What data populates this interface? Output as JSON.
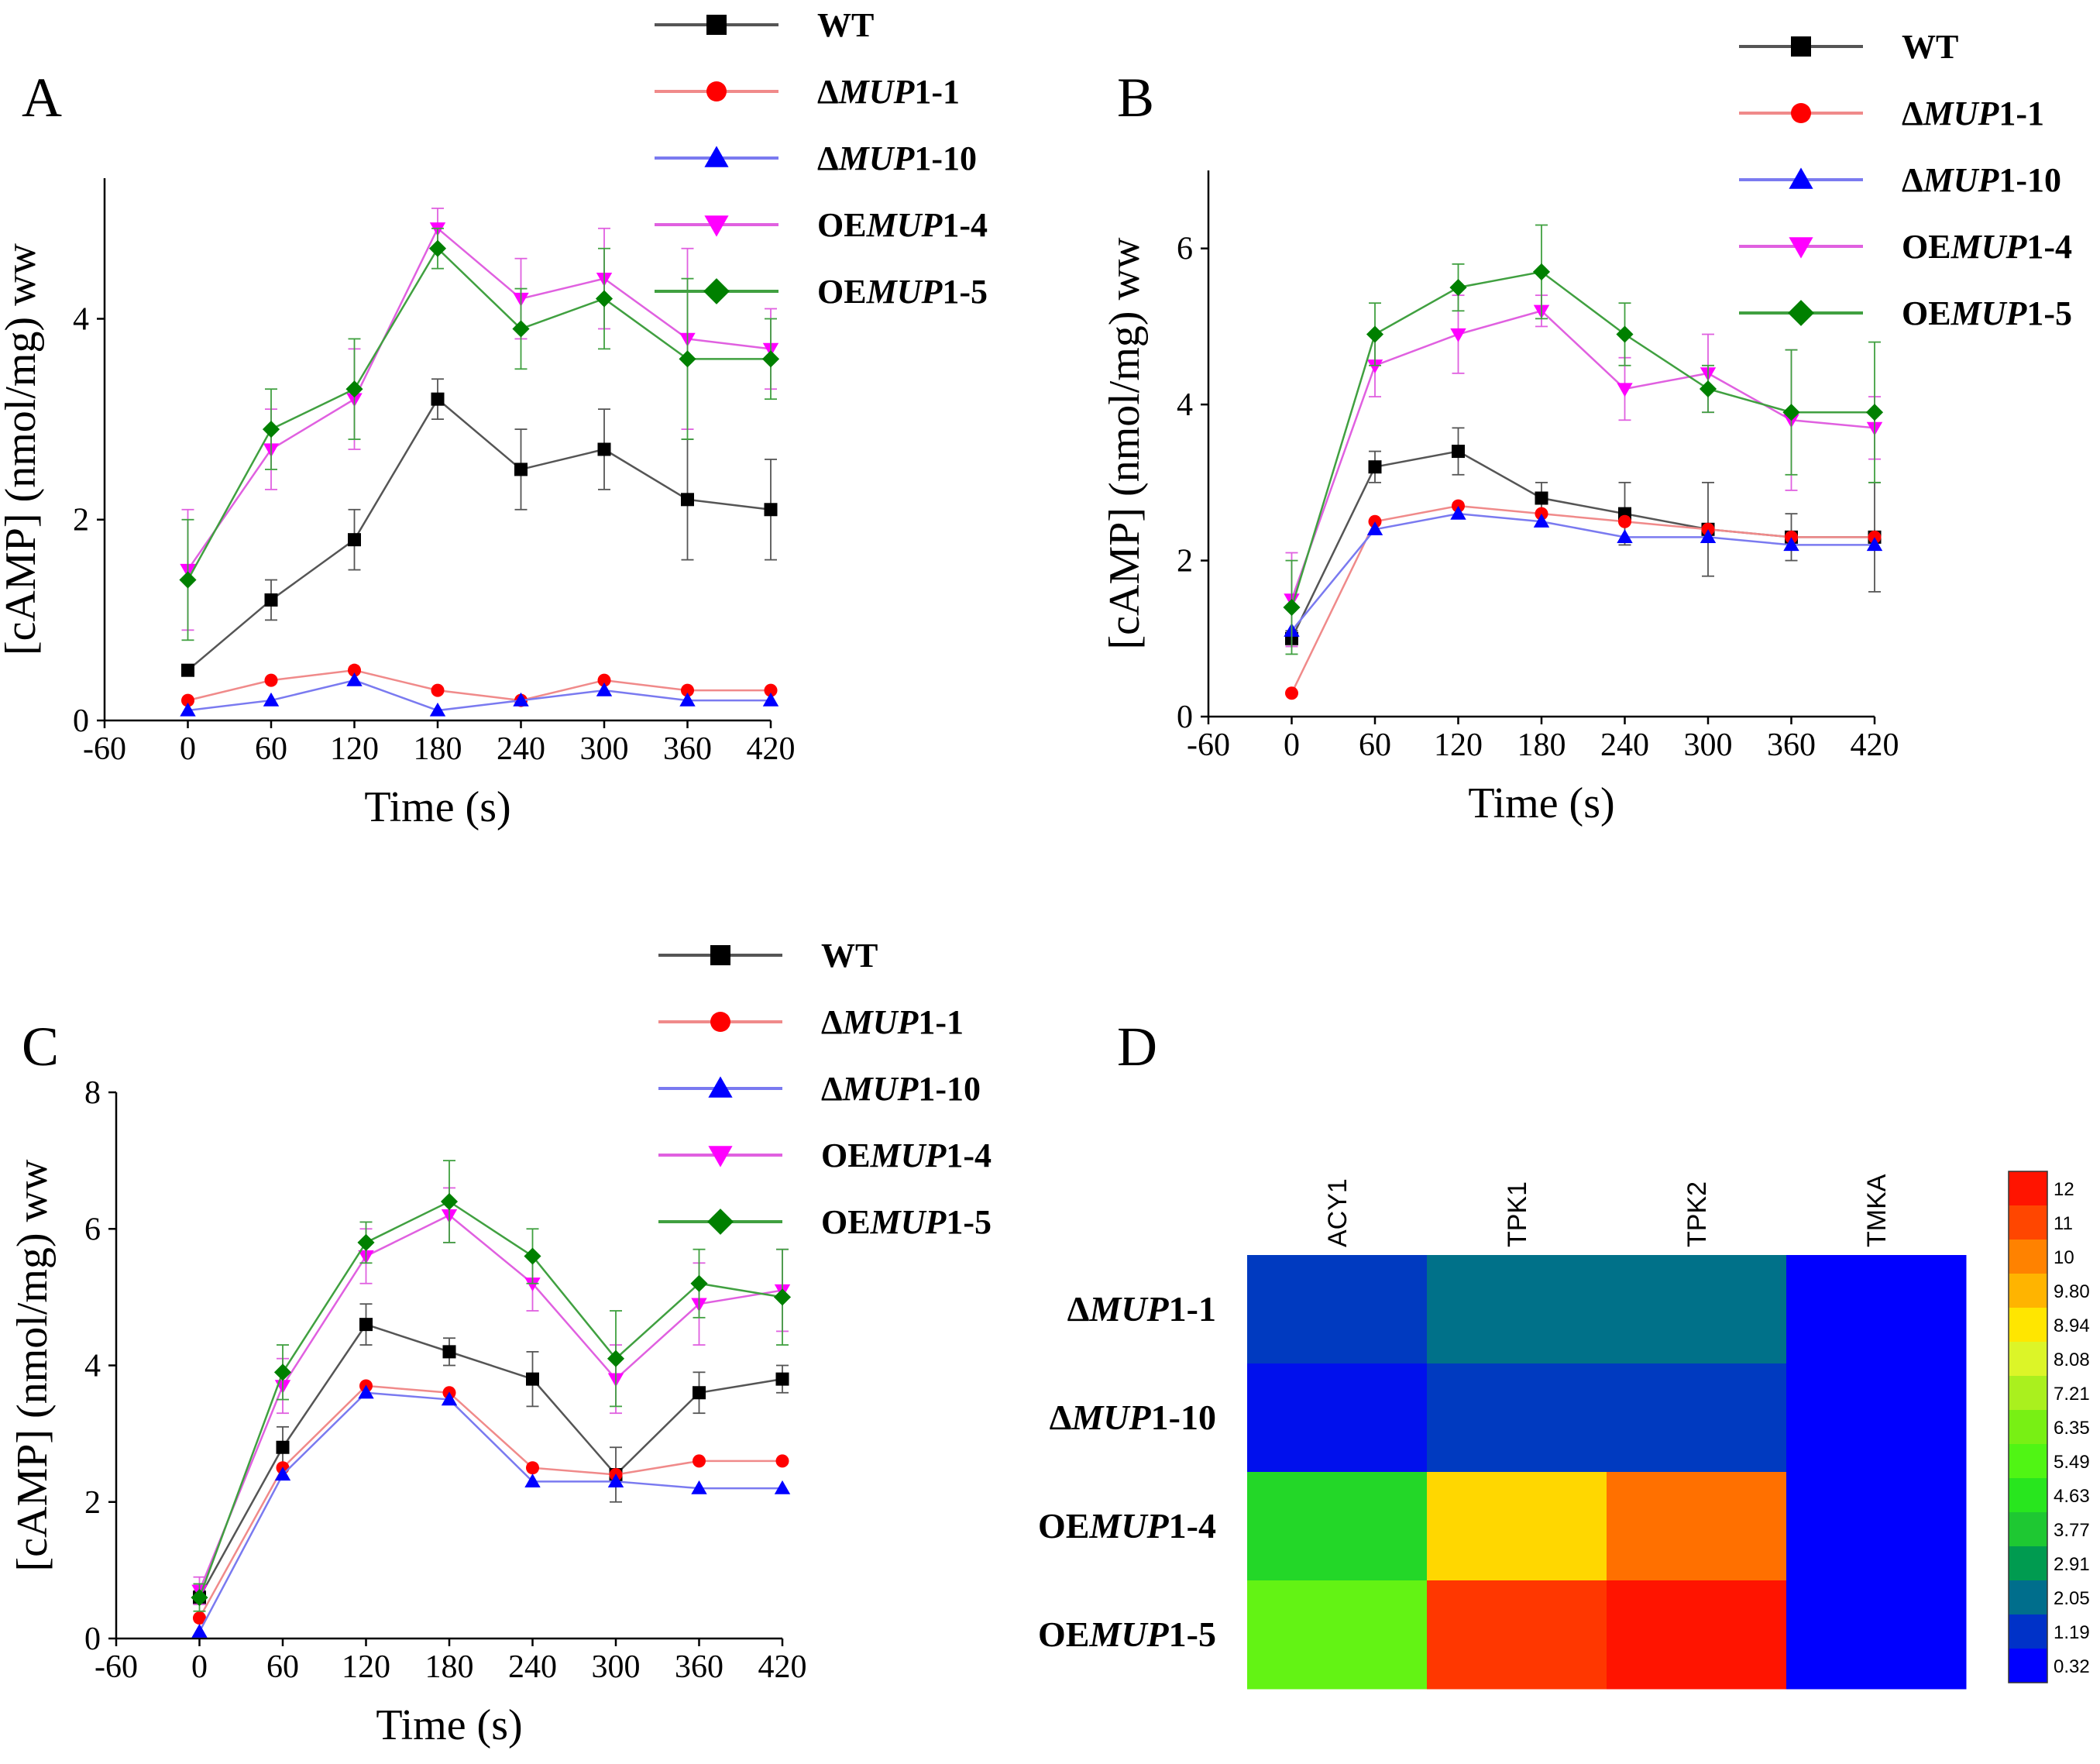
{
  "chart_data": [
    {
      "panel": "A",
      "type": "line",
      "xlabel": "Time (s)",
      "ylabel": "[cAMP] (nmol/mg) ww",
      "xlim": [
        -60,
        420
      ],
      "ylim": [
        0,
        5.4
      ],
      "xticks": [
        -60,
        0,
        60,
        120,
        180,
        240,
        300,
        360,
        420
      ],
      "yticks": [
        0,
        2,
        4
      ],
      "x": [
        0,
        60,
        120,
        180,
        240,
        300,
        360,
        420
      ],
      "series": [
        {
          "name": "WT",
          "values": [
            0.5,
            1.2,
            1.8,
            3.2,
            2.5,
            2.7,
            2.2,
            2.1
          ],
          "errors": [
            0.05,
            0.2,
            0.3,
            0.2,
            0.4,
            0.4,
            0.6,
            0.5
          ]
        },
        {
          "name": "ΔMUP1-1",
          "values": [
            0.2,
            0.4,
            0.5,
            0.3,
            0.2,
            0.4,
            0.3,
            0.3
          ],
          "errors": [
            0,
            0,
            0,
            0,
            0,
            0,
            0,
            0
          ]
        },
        {
          "name": "ΔMUP1-10",
          "values": [
            0.1,
            0.2,
            0.4,
            0.1,
            0.2,
            0.3,
            0.2,
            0.2
          ],
          "errors": [
            0,
            0,
            0,
            0,
            0,
            0,
            0,
            0
          ]
        },
        {
          "name": "OEMUP1-4",
          "values": [
            1.5,
            2.7,
            3.2,
            4.9,
            4.2,
            4.4,
            3.8,
            3.7
          ],
          "errors": [
            0.6,
            0.4,
            0.5,
            0.2,
            0.4,
            0.5,
            0.9,
            0.4
          ]
        },
        {
          "name": "OEMUP1-5",
          "values": [
            1.4,
            2.9,
            3.3,
            4.7,
            3.9,
            4.2,
            3.6,
            3.6
          ],
          "errors": [
            0.6,
            0.4,
            0.5,
            0.2,
            0.4,
            0.5,
            0.8,
            0.4
          ]
        }
      ]
    },
    {
      "panel": "B",
      "type": "line",
      "xlabel": "Time (s)",
      "ylabel": "[cAMP] (nmol/mg) ww",
      "xlim": [
        -60,
        420
      ],
      "ylim": [
        0,
        7
      ],
      "xticks": [
        -60,
        0,
        60,
        120,
        180,
        240,
        300,
        360,
        420
      ],
      "yticks": [
        0,
        2,
        4,
        6
      ],
      "x": [
        0,
        60,
        120,
        180,
        240,
        300,
        360,
        420
      ],
      "series": [
        {
          "name": "WT",
          "values": [
            1.0,
            3.2,
            3.4,
            2.8,
            2.6,
            2.4,
            2.3,
            2.3
          ],
          "errors": [
            0.1,
            0.2,
            0.3,
            0.2,
            0.4,
            0.6,
            0.3,
            0.7
          ]
        },
        {
          "name": "ΔMUP1-1",
          "values": [
            0.3,
            2.5,
            2.7,
            2.6,
            2.5,
            2.4,
            2.3,
            2.3
          ],
          "errors": [
            0,
            0,
            0,
            0,
            0,
            0,
            0,
            0
          ]
        },
        {
          "name": "ΔMUP1-10",
          "values": [
            1.1,
            2.4,
            2.6,
            2.5,
            2.3,
            2.3,
            2.2,
            2.2
          ],
          "errors": [
            0,
            0,
            0,
            0,
            0,
            0,
            0,
            0
          ]
        },
        {
          "name": "OEMUP1-4",
          "values": [
            1.5,
            4.5,
            4.9,
            5.2,
            4.2,
            4.4,
            3.8,
            3.7
          ],
          "errors": [
            0.6,
            0.4,
            0.5,
            0.2,
            0.4,
            0.5,
            0.9,
            0.4
          ]
        },
        {
          "name": "OEMUP1-5",
          "values": [
            1.4,
            4.9,
            5.5,
            5.7,
            4.9,
            4.2,
            3.9,
            3.9
          ],
          "errors": [
            0.6,
            0.4,
            0.3,
            0.6,
            0.4,
            0.3,
            0.8,
            0.9
          ]
        }
      ]
    },
    {
      "panel": "C",
      "type": "line",
      "xlabel": "Time (s)",
      "ylabel": "[cAMP] (nmol/mg) ww",
      "xlim": [
        -60,
        420
      ],
      "ylim": [
        0,
        8
      ],
      "xticks": [
        -60,
        0,
        60,
        120,
        180,
        240,
        300,
        360,
        420
      ],
      "yticks": [
        0,
        2,
        4,
        6,
        8
      ],
      "x": [
        0,
        60,
        120,
        180,
        240,
        300,
        360,
        420
      ],
      "series": [
        {
          "name": "WT",
          "values": [
            0.6,
            2.8,
            4.6,
            4.2,
            3.8,
            2.4,
            3.6,
            3.8
          ],
          "errors": [
            0.1,
            0.3,
            0.3,
            0.2,
            0.4,
            0.4,
            0.3,
            0.2
          ]
        },
        {
          "name": "ΔMUP1-1",
          "values": [
            0.3,
            2.5,
            3.7,
            3.6,
            2.5,
            2.4,
            2.6,
            2.6
          ],
          "errors": [
            0,
            0,
            0,
            0,
            0,
            0,
            0,
            0
          ]
        },
        {
          "name": "ΔMUP1-10",
          "values": [
            0.1,
            2.4,
            3.6,
            3.5,
            2.3,
            2.3,
            2.2,
            2.2
          ],
          "errors": [
            0,
            0,
            0,
            0,
            0,
            0,
            0,
            0
          ]
        },
        {
          "name": "OEMUP1-4",
          "values": [
            0.7,
            3.7,
            5.6,
            6.2,
            5.2,
            3.8,
            4.9,
            5.1
          ],
          "errors": [
            0.2,
            0.4,
            0.4,
            0.4,
            0.4,
            0.5,
            0.6,
            0.6
          ]
        },
        {
          "name": "OEMUP1-5",
          "values": [
            0.6,
            3.9,
            5.8,
            6.4,
            5.6,
            4.1,
            5.2,
            5.0
          ],
          "errors": [
            0.2,
            0.4,
            0.3,
            0.6,
            0.4,
            0.7,
            0.5,
            0.7
          ]
        }
      ]
    },
    {
      "panel": "D",
      "type": "heatmap",
      "columns": [
        "ACY1",
        "TPK1",
        "TPK2",
        "TMKA"
      ],
      "rows": [
        "ΔMUP1-1",
        "ΔMUP1-10",
        "OEMUP1-4",
        "OEMUP1-5"
      ],
      "values": [
        [
          1.3,
          2.1,
          2.1,
          0.3
        ],
        [
          0.6,
          1.3,
          1.3,
          0.3
        ],
        [
          4.2,
          9.2,
          10.3,
          0.3
        ],
        [
          5.9,
          11.3,
          12.0,
          0.3
        ]
      ],
      "colorbar_ticks": [
        "12",
        "11",
        "10",
        "9.80",
        "8.94",
        "8.08",
        "7.21",
        "6.35",
        "5.49",
        "4.63",
        "3.77",
        "2.91",
        "2.05",
        "1.19",
        "0.32"
      ]
    }
  ],
  "panel_letters": {
    "a": "A",
    "b": "B",
    "c": "C",
    "d": "D"
  },
  "legend_rows": [
    {
      "prefix": "",
      "italic": "",
      "suffix": "WT"
    },
    {
      "prefix": "Δ",
      "italic": "MUP",
      "suffix": "1-1"
    },
    {
      "prefix": "Δ",
      "italic": "MUP",
      "suffix": "1-10"
    },
    {
      "prefix": "OE",
      "italic": "MUP",
      "suffix": "1-4"
    },
    {
      "prefix": "OE",
      "italic": "MUP",
      "suffix": "1-5"
    }
  ],
  "heatmap_row_labels": [
    {
      "prefix": "Δ",
      "italic": "MUP",
      "suffix": "1-1"
    },
    {
      "prefix": "Δ",
      "italic": "MUP",
      "suffix": "1-10"
    },
    {
      "prefix": "OE",
      "italic": "MUP",
      "suffix": "1-4"
    },
    {
      "prefix": "OE",
      "italic": "MUP",
      "suffix": "1-5"
    }
  ],
  "colors": {
    "WT": "#000000",
    "dMUP1_1": "#ff0000",
    "dMUP1_10": "#0000ff",
    "OEMUP1_4": "#ff00ff",
    "OEMUP1_5": "#008000",
    "WT_line": "#555555",
    "dMUP1_1_line": "#f08a8a",
    "dMUP1_10_line": "#7a7af0",
    "OEMUP1_4_line": "#e060e0",
    "OEMUP1_5_line": "#40a040"
  }
}
